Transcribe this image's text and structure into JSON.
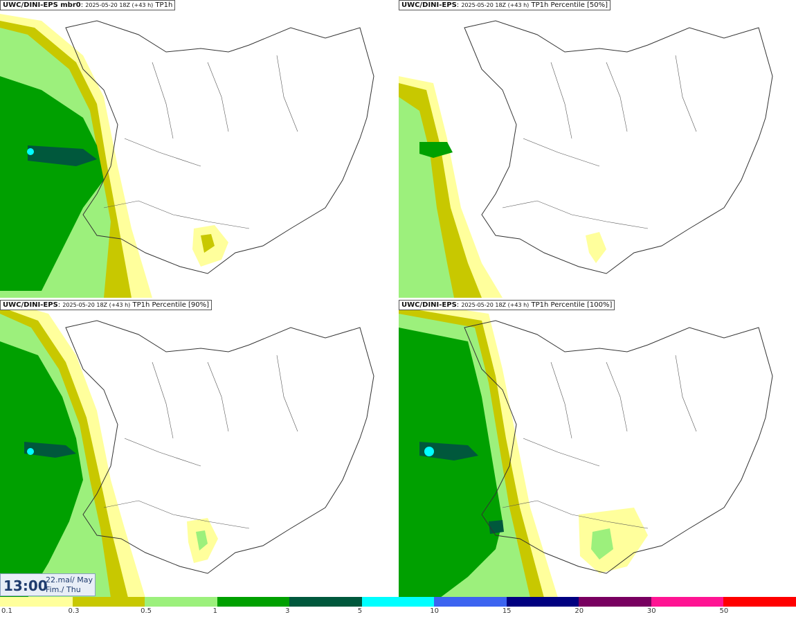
{
  "panels": [
    {
      "model": "UWC/DINI-EPS mbr0",
      "run": "2025-05-20 18Z (+43 h)",
      "field": "TP1h"
    },
    {
      "model": "UWC/DINI-EPS",
      "run": "2025-05-20 18Z (+43 h)",
      "field": "TP1h Percentile [50%]"
    },
    {
      "model": "UWC/DINI-EPS",
      "run": "2025-05-20 18Z (+43 h)",
      "field": "TP1h Percentile [90%]"
    },
    {
      "model": "UWC/DINI-EPS",
      "run": "2025-05-20 18Z (+43 h)",
      "field": "TP1h Percentile [100%]"
    }
  ],
  "valid_time": {
    "time": "13:00",
    "date_line1": "22.maí/ May",
    "date_line2": "Fim./ Thu"
  },
  "legend": {
    "colors": [
      "#ffff9c",
      "#c8c800",
      "#9cf07c",
      "#00a000",
      "#00583c",
      "#00ffff",
      "#3c64f0",
      "#000080",
      "#780060",
      "#ff1493",
      "#ff0000"
    ],
    "labels": [
      "0.1",
      "0.3",
      "0.5",
      "1",
      "3",
      "5",
      "10",
      "15",
      "20",
      "30",
      "50"
    ]
  },
  "colors": {
    "light_yellow": "#ffff9c",
    "olive": "#c8c800",
    "light_green": "#9cf07c",
    "green": "#00a000",
    "dark_green": "#00583c",
    "cyan": "#00ffff"
  }
}
